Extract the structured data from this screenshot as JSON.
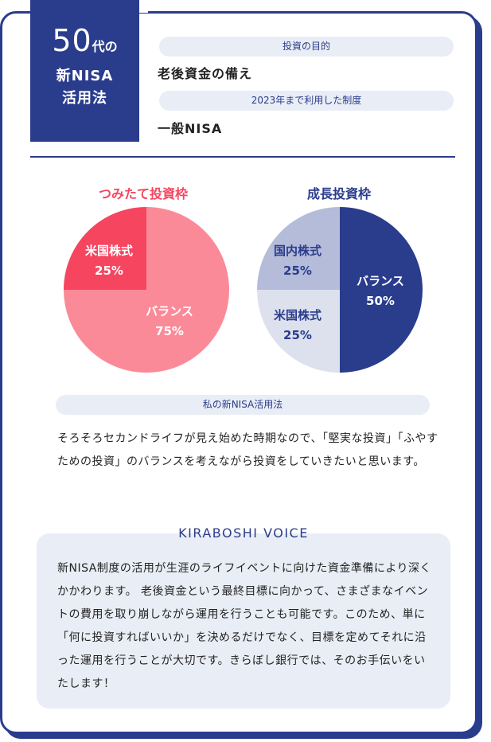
{
  "header": {
    "age_number": "50",
    "age_suffix": "代の",
    "line2": "新NISA",
    "line3": "活用法"
  },
  "info": {
    "purpose_label": "投資の目的",
    "purpose_value": "老後資金の備え",
    "system_label": "2023年まで利用した制度",
    "system_value": "一般NISA"
  },
  "chart_data": [
    {
      "type": "pie",
      "title": "つみたて投資枠",
      "slices": [
        {
          "label": "米国株式",
          "value": 25,
          "value_label": "25%",
          "color": "#f5455f"
        },
        {
          "label": "バランス",
          "value": 75,
          "value_label": "75%",
          "color": "#fb8a99"
        }
      ],
      "title_color": "#f5455f"
    },
    {
      "type": "pie",
      "title": "成長投資枠",
      "slices": [
        {
          "label": "国内株式",
          "value": 25,
          "value_label": "25%",
          "color": "#b5bcd9"
        },
        {
          "label": "バランス",
          "value": 50,
          "value_label": "50%",
          "color": "#2a3c8c"
        },
        {
          "label": "米国株式",
          "value": 25,
          "value_label": "25%",
          "color": "#dde1ee"
        }
      ],
      "title_color": "#2a3c8c"
    }
  ],
  "my_method": {
    "label": "私の新NISA活用法",
    "text": "そろそろセカンドライフが見え始めた時期なので、「堅実な投資」「ふやすための投資」のバランスを考えながら投資をしていきたいと思います。"
  },
  "voice": {
    "title": "KIRABOSHI VOICE",
    "text": "新NISA制度の活用が生涯のライフイベントに向けた資金準備により深くかかわります。 老後資金という最終目標に向かって、さまざまなイベントの費用を取り崩しながら運用を行うことも可能です。このため、単に「何に投資すればいいか」を決めるだけでなく、目標を定めてそれに沿った運用を行うことが大切です。きらぼし銀行では、そのお手伝いをいたします！"
  },
  "colors": {
    "navy": "#2a3c8c",
    "pink": "#f5455f",
    "pill_bg": "#e9edf5"
  }
}
